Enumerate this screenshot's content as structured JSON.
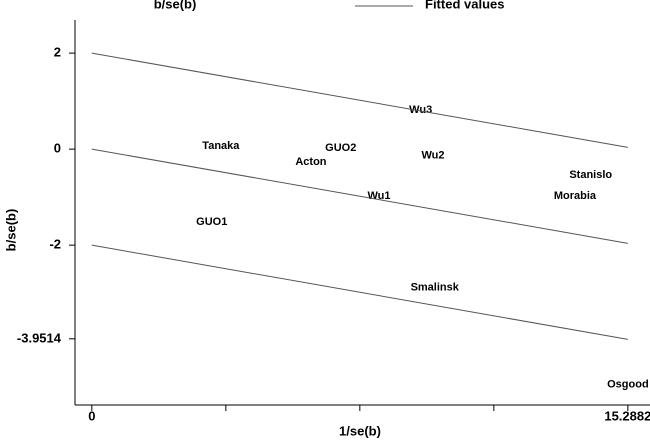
{
  "chart_data": {
    "type": "scatter",
    "x_label": "1/se(b)",
    "y_label": "b/se(b)",
    "xlim": [
      -0.48,
      15.92
    ],
    "ylim": [
      -5.33,
      2.69
    ],
    "xticks": [
      0,
      15.2882
    ],
    "xminor_ticks": [
      3.82205,
      7.6441,
      11.46615
    ],
    "yticks": [
      2,
      0,
      -2,
      -3.9514
    ],
    "legend": "top",
    "series": [
      {
        "name": "b/se(b)",
        "type": "scatter",
        "color": "#000000",
        "labels": [
          "Tanaka",
          "GUO2",
          "Acton",
          "Wu3",
          "Wu2",
          "Wu1",
          "GUO1",
          "Stanislo",
          "Morabia",
          "Smalinsk",
          "Osgood"
        ],
        "x": [
          3.68,
          7.1,
          6.25,
          9.38,
          9.73,
          8.19,
          3.42,
          14.23,
          13.78,
          9.78,
          15.29
        ],
        "values": [
          0.06,
          0.02,
          -0.27,
          0.81,
          -0.13,
          -0.98,
          -1.52,
          -0.54,
          -0.98,
          -2.88,
          -4.9
        ]
      },
      {
        "name": "Fitted values",
        "type": "line",
        "color": "#555555",
        "x": [
          0,
          15.2882
        ],
        "values": [
          0,
          -1.963
        ],
        "band": 2
      }
    ]
  }
}
